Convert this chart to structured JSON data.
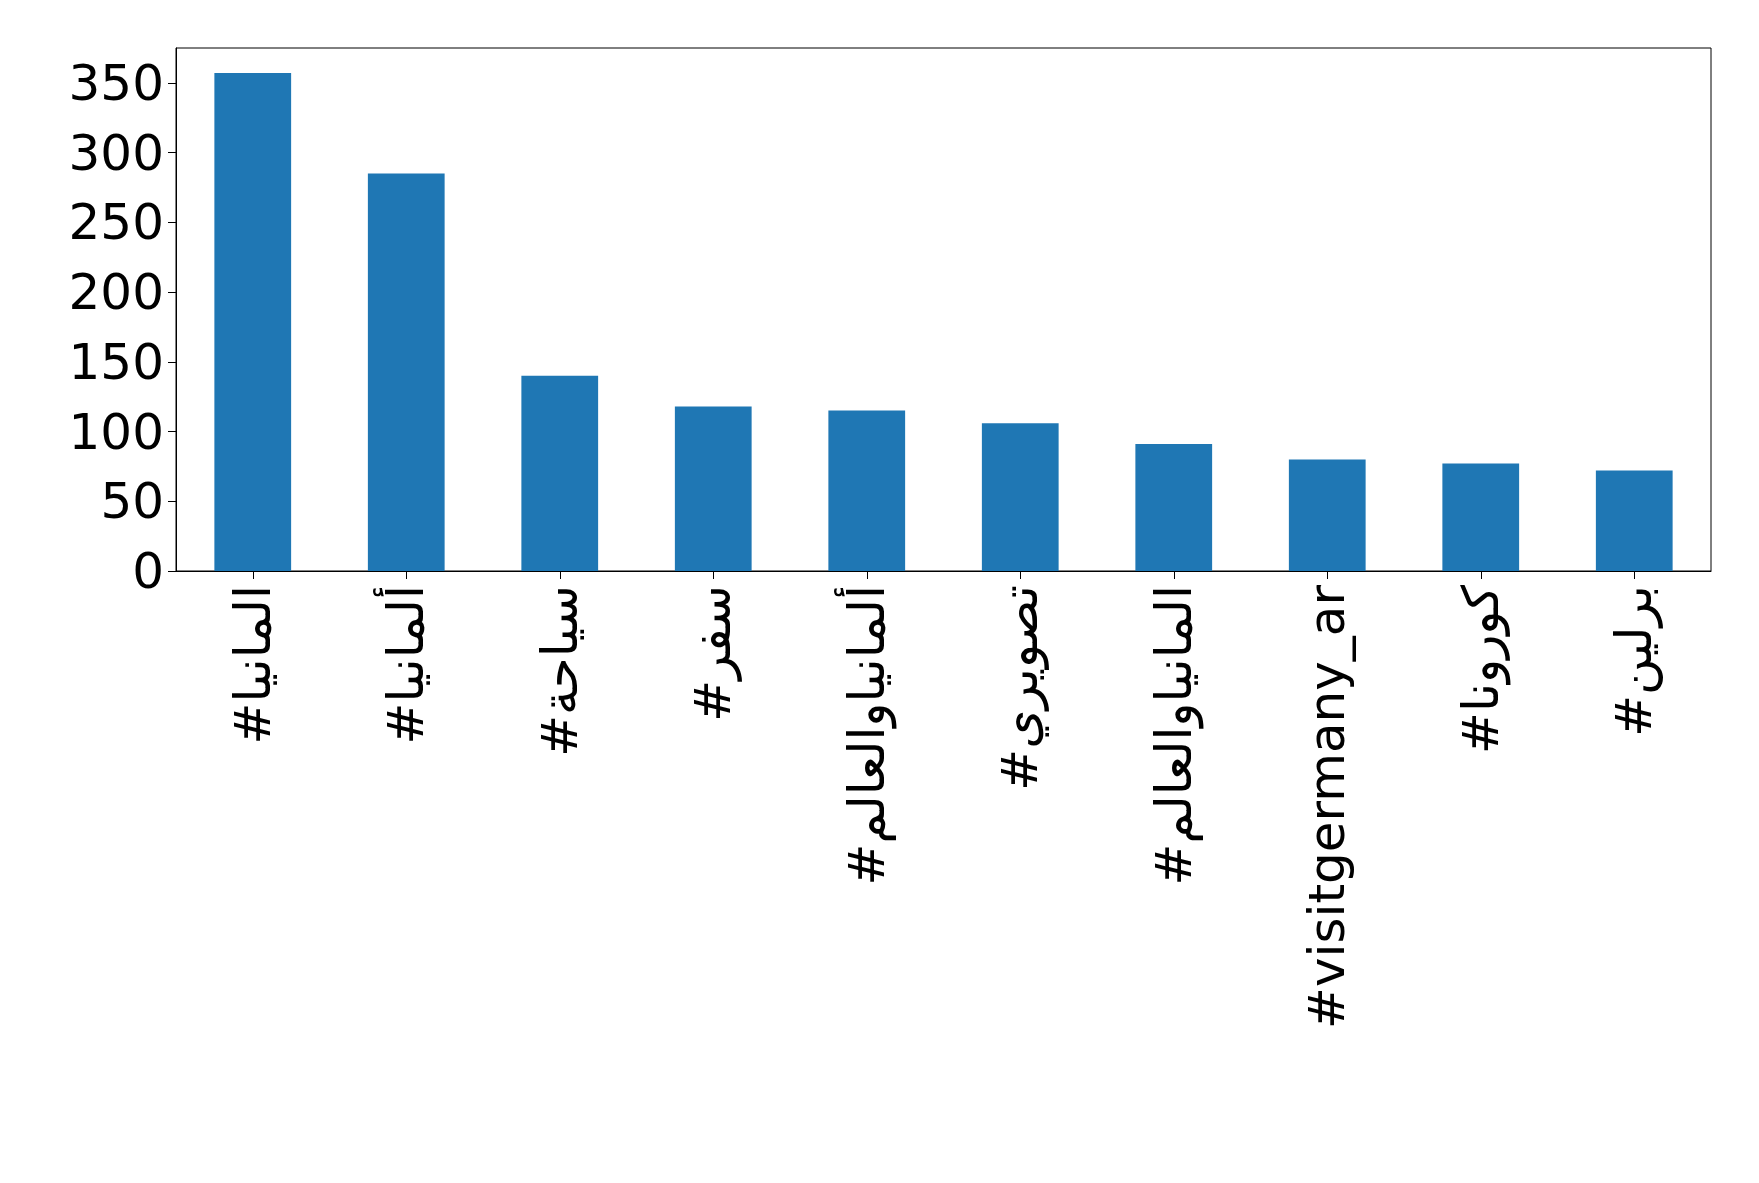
{
  "chart_data": {
    "type": "bar",
    "categories": [
      "#المانيا",
      "#ألمانيا",
      "#سياحة",
      "#سفر",
      "#ألمانياوالعالم",
      "#تصويري",
      "#المانياوالعالم",
      "#visitgermany_ar",
      "#كورونا",
      "#برلين"
    ],
    "values": [
      357,
      285,
      140,
      118,
      115,
      106,
      91,
      80,
      77,
      72
    ],
    "color": "#1f77b4",
    "ylim": [
      0,
      375
    ],
    "yticks": [
      0,
      50,
      100,
      150,
      200,
      250,
      300,
      350
    ],
    "grid": false
  }
}
